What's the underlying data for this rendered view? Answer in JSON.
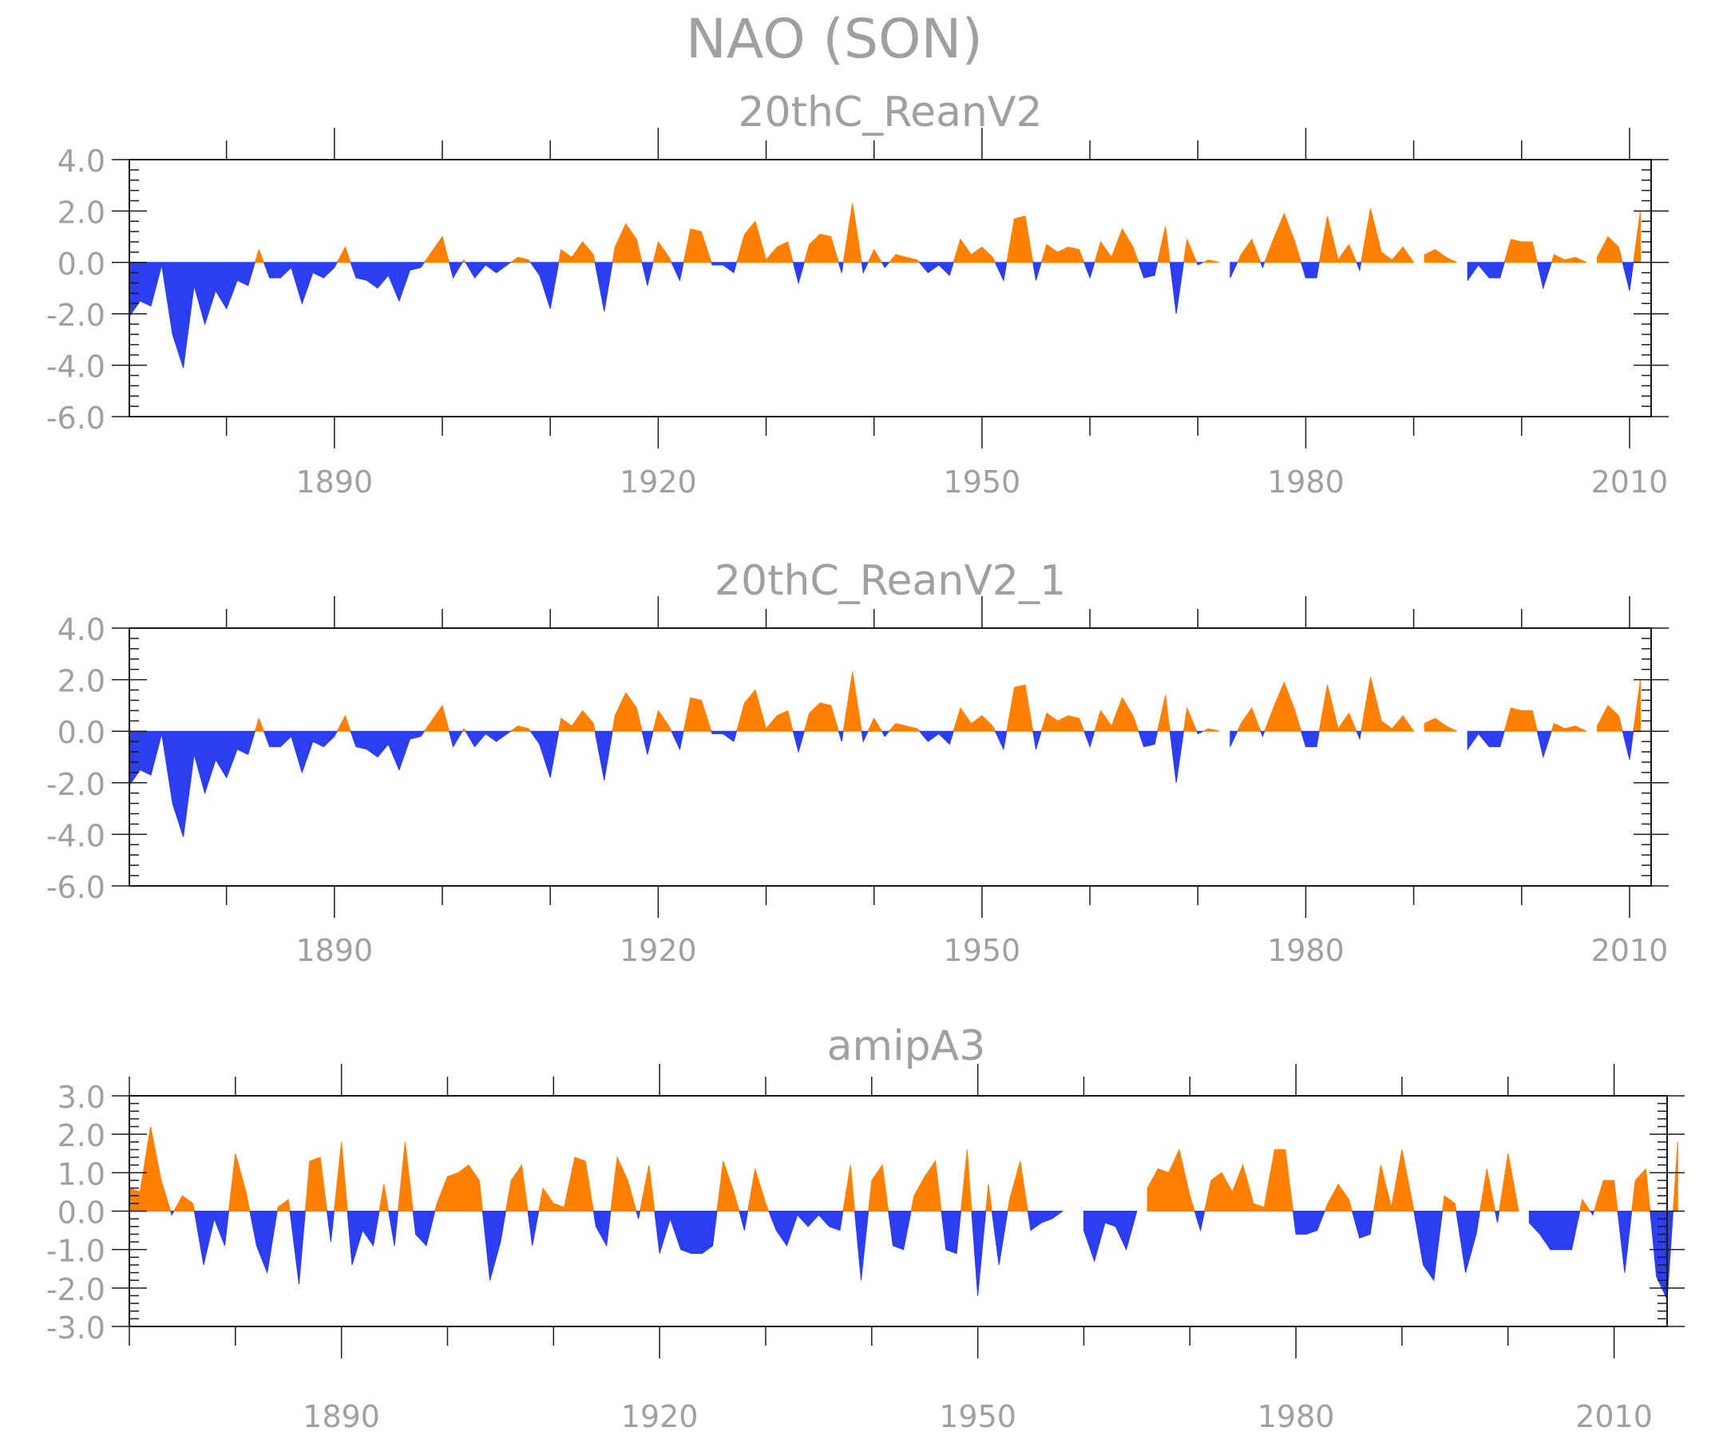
{
  "title": "NAO (SON)",
  "colors": {
    "positive": "#ff8000",
    "negative": "#2c3ef0",
    "axis": "#1a1a1a",
    "text": "#a0a0a0"
  },
  "chart_data": [
    {
      "type": "area",
      "title": "20thC_ReanV2",
      "xlabel": "",
      "ylabel": "",
      "xlim": [
        1871,
        2012
      ],
      "ylim": [
        -6.0,
        4.0
      ],
      "yticks": [
        "4.0",
        "2.0",
        "0.0",
        "-2.0",
        "-4.0",
        "-6.0"
      ],
      "ytick_values": [
        4,
        2,
        0,
        -2,
        -4,
        -6
      ],
      "xticks": [
        "1890",
        "1920",
        "1950",
        "1980",
        "2010"
      ],
      "xtick_values": [
        1890,
        1920,
        1950,
        1980,
        2010
      ],
      "grid": false,
      "x_start": 1871,
      "values": [
        -2.1,
        -1.5,
        -1.7,
        -0.1,
        -2.8,
        -4.1,
        -0.9,
        -2.4,
        -1.1,
        -1.8,
        -0.7,
        -0.9,
        0.5,
        -0.6,
        -0.6,
        -0.2,
        -1.6,
        -0.4,
        -0.6,
        -0.2,
        0.6,
        -0.6,
        -0.7,
        -1.0,
        -0.5,
        -1.5,
        -0.3,
        -0.2,
        0.4,
        1.0,
        -0.6,
        0.1,
        -0.6,
        -0.1,
        -0.4,
        -0.1,
        0.2,
        0.1,
        -0.5,
        -1.8,
        0.5,
        0.2,
        0.8,
        0.3,
        -1.9,
        0.6,
        1.5,
        0.9,
        -0.9,
        0.8,
        0.2,
        -0.7,
        1.3,
        1.2,
        -0.1,
        -0.1,
        -0.4,
        1.1,
        1.6,
        0.1,
        0.6,
        0.8,
        -0.8,
        0.7,
        1.1,
        1.0,
        -0.4,
        2.3,
        -0.4,
        0.5,
        -0.2,
        0.3,
        0.2,
        0.1,
        -0.4,
        -0.1,
        -0.5,
        0.9,
        0.3,
        0.6,
        0.2,
        -0.7,
        1.7,
        1.8,
        -0.7,
        0.7,
        0.4,
        0.6,
        0.5,
        -0.6,
        0.8,
        0.2,
        1.3,
        0.6,
        -0.6,
        -0.5,
        1.4,
        -2.0,
        0.9,
        -0.1,
        0.1,
        0.0,
        -0.6,
        0.3,
        0.9,
        -0.2,
        0.9,
        1.9,
        0.8,
        -0.6,
        -0.6,
        1.8,
        0.1,
        0.7,
        -0.3,
        2.1,
        0.4,
        0.1,
        0.6,
        0.0,
        0.3,
        0.5,
        0.2,
        0.0,
        -0.7,
        -0.1,
        -0.6,
        -0.6,
        0.9,
        0.8,
        0.8,
        -1.0,
        0.3,
        0.1,
        0.2,
        0.0,
        0.2,
        1.0,
        0.6,
        -1.1,
        2.0
      ]
    },
    {
      "type": "area",
      "title": "20thC_ReanV2_1",
      "xlabel": "",
      "ylabel": "",
      "xlim": [
        1871,
        2012
      ],
      "ylim": [
        -6.0,
        4.0
      ],
      "yticks": [
        "4.0",
        "2.0",
        "0.0",
        "-2.0",
        "-4.0",
        "-6.0"
      ],
      "ytick_values": [
        4,
        2,
        0,
        -2,
        -4,
        -6
      ],
      "xticks": [
        "1890",
        "1920",
        "1950",
        "1980",
        "2010"
      ],
      "xtick_values": [
        1890,
        1920,
        1950,
        1980,
        2010
      ],
      "grid": false,
      "x_start": 1871,
      "values": [
        -2.1,
        -1.5,
        -1.7,
        -0.1,
        -2.8,
        -4.1,
        -0.9,
        -2.4,
        -1.1,
        -1.8,
        -0.7,
        -0.9,
        0.5,
        -0.6,
        -0.6,
        -0.2,
        -1.6,
        -0.4,
        -0.6,
        -0.2,
        0.6,
        -0.6,
        -0.7,
        -1.0,
        -0.5,
        -1.5,
        -0.3,
        -0.2,
        0.4,
        1.0,
        -0.6,
        0.1,
        -0.6,
        -0.1,
        -0.4,
        -0.1,
        0.2,
        0.1,
        -0.5,
        -1.8,
        0.5,
        0.2,
        0.8,
        0.3,
        -1.9,
        0.6,
        1.5,
        0.9,
        -0.9,
        0.8,
        0.2,
        -0.7,
        1.3,
        1.2,
        -0.1,
        -0.1,
        -0.4,
        1.1,
        1.6,
        0.1,
        0.6,
        0.8,
        -0.8,
        0.7,
        1.1,
        1.0,
        -0.4,
        2.3,
        -0.4,
        0.5,
        -0.2,
        0.3,
        0.2,
        0.1,
        -0.4,
        -0.1,
        -0.5,
        0.9,
        0.3,
        0.6,
        0.2,
        -0.7,
        1.7,
        1.8,
        -0.7,
        0.7,
        0.4,
        0.6,
        0.5,
        -0.6,
        0.8,
        0.2,
        1.3,
        0.6,
        -0.6,
        -0.5,
        1.4,
        -2.0,
        0.9,
        -0.1,
        0.1,
        0.0,
        -0.6,
        0.3,
        0.9,
        -0.2,
        0.9,
        1.9,
        0.8,
        -0.6,
        -0.6,
        1.8,
        0.1,
        0.7,
        -0.3,
        2.1,
        0.4,
        0.1,
        0.6,
        0.0,
        0.3,
        0.5,
        0.2,
        0.0,
        -0.7,
        -0.1,
        -0.6,
        -0.6,
        0.9,
        0.8,
        0.8,
        -1.0,
        0.3,
        0.1,
        0.2,
        0.0,
        0.2,
        1.0,
        0.6,
        -1.1,
        2.0
      ]
    },
    {
      "type": "area",
      "title": "amipA3",
      "xlabel": "",
      "ylabel": "",
      "xlim": [
        1870,
        2015
      ],
      "ylim": [
        -3.0,
        3.0
      ],
      "yticks": [
        "3.0",
        "2.0",
        "1.0",
        "0.0",
        "-1.0",
        "-2.0",
        "-3.0"
      ],
      "ytick_values": [
        3,
        2,
        1,
        0,
        -1,
        -2,
        -3
      ],
      "xticks": [
        "1890",
        "1920",
        "1950",
        "1980",
        "2010"
      ],
      "xtick_values": [
        1890,
        1920,
        1950,
        1980,
        2010
      ],
      "grid": false,
      "x_start": 1870,
      "values": [
        0.6,
        0.5,
        2.2,
        0.8,
        -0.1,
        0.4,
        0.2,
        -1.4,
        -0.2,
        -0.9,
        1.5,
        0.5,
        -0.9,
        -1.6,
        0.1,
        0.3,
        -1.9,
        1.3,
        1.4,
        -0.8,
        1.8,
        -1.4,
        -0.5,
        -0.9,
        0.7,
        -0.9,
        1.8,
        -0.6,
        -0.9,
        0.2,
        0.9,
        1.0,
        1.2,
        0.8,
        -1.8,
        -0.8,
        0.8,
        1.2,
        -0.9,
        0.6,
        0.2,
        0.1,
        1.4,
        1.3,
        -0.4,
        -0.9,
        1.4,
        0.8,
        -0.2,
        1.2,
        -1.1,
        -0.2,
        -1.0,
        -1.1,
        -1.1,
        -0.9,
        1.3,
        0.5,
        -0.5,
        1.1,
        0.2,
        -0.5,
        -0.9,
        -0.1,
        -0.4,
        -0.1,
        -0.4,
        -0.5,
        1.2,
        -1.8,
        0.8,
        1.2,
        -0.9,
        -1.0,
        0.4,
        0.9,
        1.3,
        -1.0,
        -1.1,
        1.6,
        -2.2,
        0.7,
        -1.4,
        0.3,
        1.3,
        -0.5,
        -0.3,
        -0.2,
        0.0,
        0.0,
        -0.5,
        -1.3,
        -0.3,
        -0.4,
        -1.0,
        0.0,
        0.6,
        1.1,
        1.0,
        1.6,
        0.4,
        -0.5,
        0.8,
        1.0,
        0.5,
        1.2,
        0.2,
        0.1,
        1.6,
        1.6,
        -0.6,
        -0.6,
        -0.5,
        0.2,
        0.7,
        0.3,
        -0.7,
        -0.6,
        1.2,
        0.1,
        1.6,
        0.2,
        -1.4,
        -1.8,
        0.4,
        0.2,
        -1.6,
        -0.6,
        1.1,
        -0.3,
        1.5,
        0.0,
        -0.3,
        -0.6,
        -1.0,
        -1.0,
        -1.0,
        0.3,
        -0.1,
        0.8,
        0.8,
        -1.6,
        0.8,
        1.1,
        -1.7,
        -2.3,
        1.8
      ]
    }
  ]
}
